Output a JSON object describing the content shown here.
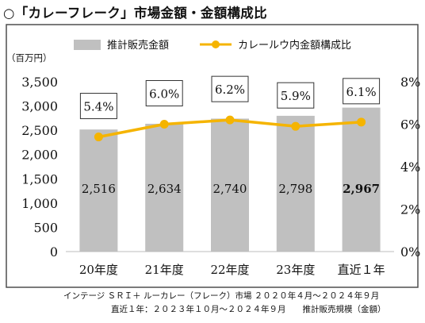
{
  "title": "○「カレーフレーク」市場金額・金額構成比",
  "unit_label": "（百万円）",
  "notes": [
    "インテージ ＳＲＩ＋ ルーカレー（フレーク）市場 ２０２０年４月～２０２４年９月",
    "直近１年：２０２３年１０月～２０２４年９月　　推計販売規模（金額）"
  ],
  "colors": {
    "bar": "#c0c0c0",
    "line": "#f5b400",
    "frame": "#4f4f4f"
  },
  "chart_data": {
    "type": "bar",
    "categories": [
      "20年度",
      "21年度",
      "22年度",
      "23年度",
      "直近１年"
    ],
    "series": [
      {
        "name": "推計販売金額",
        "type": "bar",
        "axis": "left",
        "values": [
          2516,
          2634,
          2740,
          2798,
          2967
        ],
        "labels": [
          "2,516",
          "2,634",
          "2,740",
          "2,798",
          "2,967"
        ]
      },
      {
        "name": "カレールウ内金額構成比",
        "type": "line",
        "axis": "right",
        "values": [
          5.4,
          6.0,
          6.2,
          5.9,
          6.1
        ],
        "labels": [
          "5.4%",
          "6.0%",
          "6.2%",
          "5.9%",
          "6.1%"
        ]
      }
    ],
    "ylim": [
      0,
      3500
    ],
    "yticks": [
      "0",
      "500",
      "1,000",
      "1,500",
      "2,000",
      "2,500",
      "3,000",
      "3,500"
    ],
    "y2lim": [
      0,
      8
    ],
    "y2ticks": [
      "0%",
      "2%",
      "4%",
      "6%",
      "8%"
    ],
    "grid": false,
    "legend": "top"
  }
}
